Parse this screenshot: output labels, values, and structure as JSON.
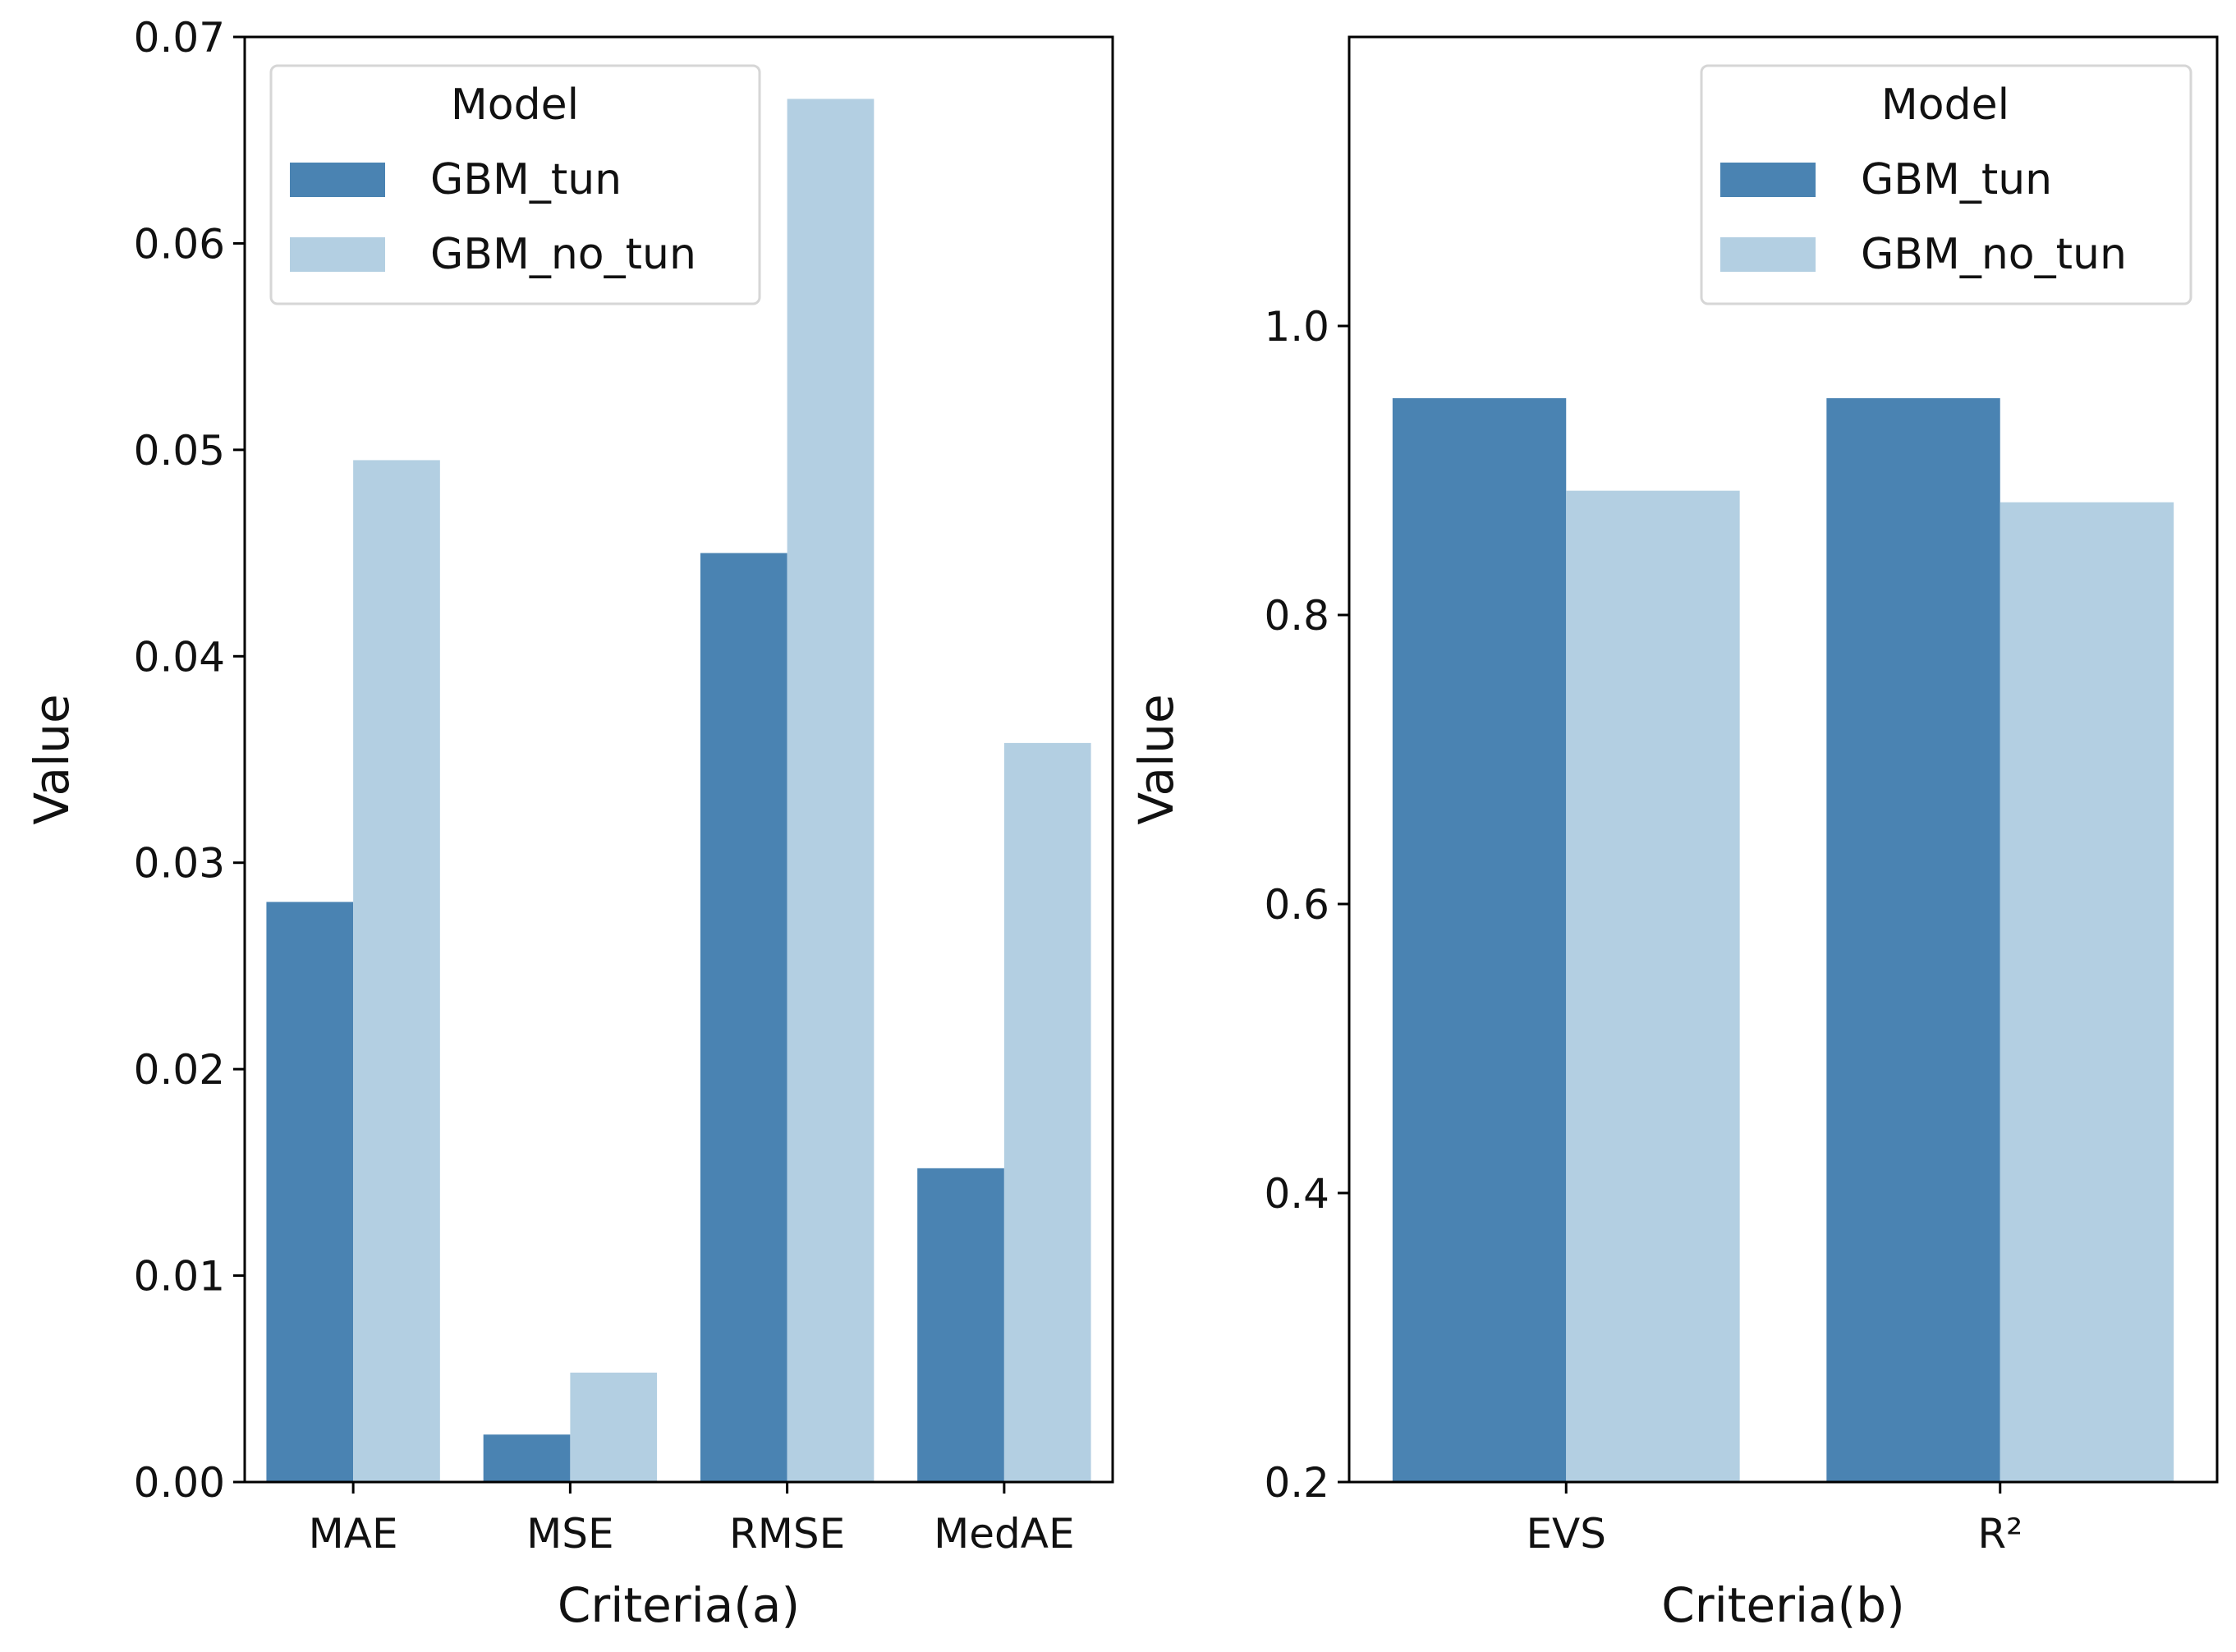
{
  "chart_data": [
    {
      "type": "bar",
      "title": "",
      "xlabel": "Criteria(a)",
      "ylabel": "Value",
      "ylim": [
        0,
        0.07
      ],
      "yticks": [
        "0.00",
        "0.01",
        "0.02",
        "0.03",
        "0.04",
        "0.05",
        "0.06",
        "0.07"
      ],
      "ytick_values": [
        0,
        0.01,
        0.02,
        0.03,
        0.04,
        0.05,
        0.06,
        0.07
      ],
      "categories": [
        "MAE",
        "MSE",
        "RMSE",
        "MedAE"
      ],
      "series": [
        {
          "name": "GBM_tun",
          "color": "#4a83b2",
          "values": [
            0.0281,
            0.0023,
            0.045,
            0.0152
          ]
        },
        {
          "name": "GBM_no_tun",
          "color": "#b3cfe2",
          "values": [
            0.0495,
            0.0053,
            0.067,
            0.0358
          ]
        }
      ],
      "legend": {
        "title": "Model",
        "position": "top-left"
      }
    },
    {
      "type": "bar",
      "title": "",
      "xlabel": "Criteria(b)",
      "ylabel": "Value",
      "ylim": [
        0.2,
        1.2
      ],
      "yticks": [
        "0.2",
        "0.4",
        "0.6",
        "0.8",
        "1.0"
      ],
      "ytick_values": [
        0.2,
        0.4,
        0.6,
        0.8,
        1.0
      ],
      "categories": [
        "EVS",
        "R²"
      ],
      "series": [
        {
          "name": "GBM_tun",
          "color": "#4a83b2",
          "values": [
            0.95,
            0.95
          ]
        },
        {
          "name": "GBM_no_tun",
          "color": "#b3cfe2",
          "values": [
            0.886,
            0.878
          ]
        }
      ],
      "legend": {
        "title": "Model",
        "position": "top-right"
      }
    }
  ]
}
